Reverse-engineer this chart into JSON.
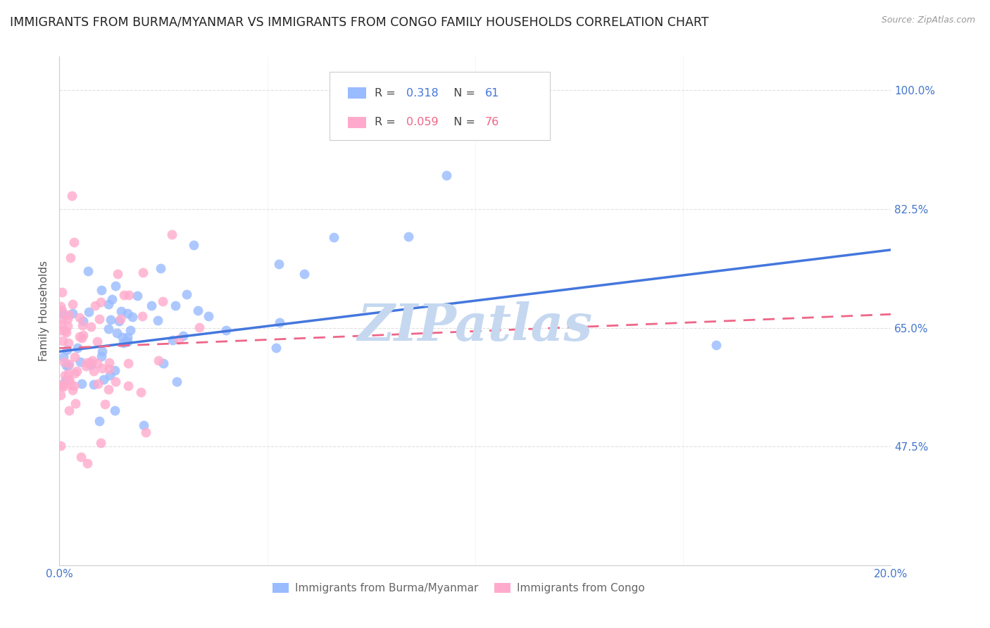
{
  "title": "IMMIGRANTS FROM BURMA/MYANMAR VS IMMIGRANTS FROM CONGO FAMILY HOUSEHOLDS CORRELATION CHART",
  "source": "Source: ZipAtlas.com",
  "ylabel": "Family Households",
  "xlim": [
    0.0,
    0.2
  ],
  "ylim": [
    0.3,
    1.05
  ],
  "ytick_positions": [
    1.0,
    0.825,
    0.65,
    0.475
  ],
  "ytick_labels": [
    "100.0%",
    "82.5%",
    "65.0%",
    "47.5%"
  ],
  "xtick_positions": [
    0.0,
    0.05,
    0.1,
    0.15,
    0.2
  ],
  "xtick_labels": [
    "0.0%",
    "",
    "",
    "",
    "20.0%"
  ],
  "grid_color": "#e0e0e0",
  "background_color": "#ffffff",
  "watermark": "ZIPatlas",
  "blue_scatter_color": "#99bbff",
  "pink_scatter_color": "#ffaacc",
  "blue_line_color": "#4477dd",
  "pink_line_color": "#ee6688",
  "blue_R": "0.318",
  "blue_N": "61",
  "pink_R": "0.059",
  "pink_N": "76",
  "series_names": [
    "Immigrants from Burma/Myanmar",
    "Immigrants from Congo"
  ],
  "title_fontsize": 12.5,
  "axis_label_fontsize": 11,
  "tick_fontsize": 11,
  "watermark_color": "#c5d8f0",
  "watermark_fontsize": 52,
  "source_fontsize": 9
}
